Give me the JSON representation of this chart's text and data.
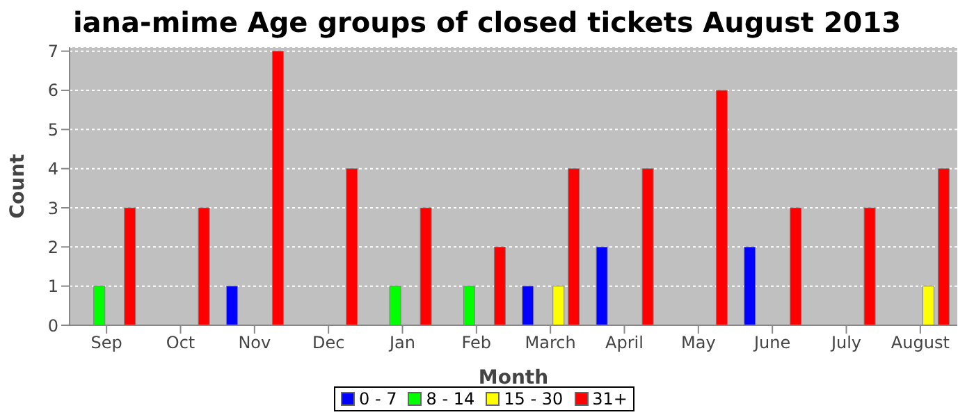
{
  "chart_data": {
    "type": "bar",
    "title": "iana-mime Age groups of closed tickets August 2013",
    "xlabel": "Month",
    "ylabel": "Count",
    "categories": [
      "Sep",
      "Oct",
      "Nov",
      "Dec",
      "Jan",
      "Feb",
      "March",
      "April",
      "May",
      "June",
      "July",
      "August"
    ],
    "series": [
      {
        "name": "0 - 7",
        "color": "#0000ff",
        "values": [
          0,
          0,
          1,
          0,
          0,
          0,
          1,
          2,
          0,
          2,
          0,
          0
        ]
      },
      {
        "name": "8 - 14",
        "color": "#00ff00",
        "values": [
          1,
          0,
          0,
          0,
          1,
          1,
          0,
          0,
          0,
          0,
          0,
          0
        ]
      },
      {
        "name": "15 - 30",
        "color": "#ffff00",
        "values": [
          0,
          0,
          0,
          0,
          0,
          0,
          1,
          0,
          0,
          0,
          0,
          1
        ]
      },
      {
        "name": "31+",
        "color": "#ff0000",
        "values": [
          3,
          3,
          7,
          4,
          3,
          2,
          4,
          4,
          6,
          3,
          3,
          4
        ]
      }
    ],
    "ylim": [
      0,
      7.1
    ],
    "yticks": [
      0,
      1,
      2,
      3,
      4,
      5,
      6,
      7
    ],
    "grid": "y",
    "legend": "bottom"
  }
}
